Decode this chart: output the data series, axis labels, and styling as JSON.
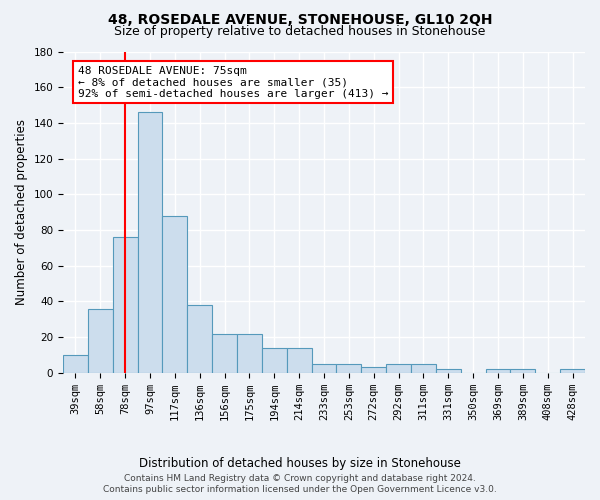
{
  "title": "48, ROSEDALE AVENUE, STONEHOUSE, GL10 2QH",
  "subtitle": "Size of property relative to detached houses in Stonehouse",
  "xlabel": "Distribution of detached houses by size in Stonehouse",
  "ylabel": "Number of detached properties",
  "bar_color": "#ccdded",
  "bar_edge_color": "#5599bb",
  "categories": [
    "39sqm",
    "58sqm",
    "78sqm",
    "97sqm",
    "117sqm",
    "136sqm",
    "156sqm",
    "175sqm",
    "194sqm",
    "214sqm",
    "233sqm",
    "253sqm",
    "272sqm",
    "292sqm",
    "311sqm",
    "331sqm",
    "350sqm",
    "369sqm",
    "389sqm",
    "408sqm",
    "428sqm"
  ],
  "values": [
    10,
    36,
    76,
    146,
    88,
    38,
    22,
    22,
    14,
    14,
    5,
    5,
    3,
    5,
    5,
    2,
    0,
    2,
    2,
    0,
    2
  ],
  "ylim": [
    0,
    180
  ],
  "yticks": [
    0,
    20,
    40,
    60,
    80,
    100,
    120,
    140,
    160,
    180
  ],
  "red_line_x": 2.0,
  "annotation_line1": "48 ROSEDALE AVENUE: 75sqm",
  "annotation_line2": "← 8% of detached houses are smaller (35)",
  "annotation_line3": "92% of semi-detached houses are larger (413) →",
  "footer1": "Contains HM Land Registry data © Crown copyright and database right 2024.",
  "footer2": "Contains public sector information licensed under the Open Government Licence v3.0.",
  "background_color": "#eef2f7",
  "grid_color": "#ffffff",
  "title_fontsize": 10,
  "subtitle_fontsize": 9,
  "axis_label_fontsize": 8.5,
  "tick_fontsize": 7.5,
  "footer_fontsize": 6.5,
  "annot_fontsize": 8
}
